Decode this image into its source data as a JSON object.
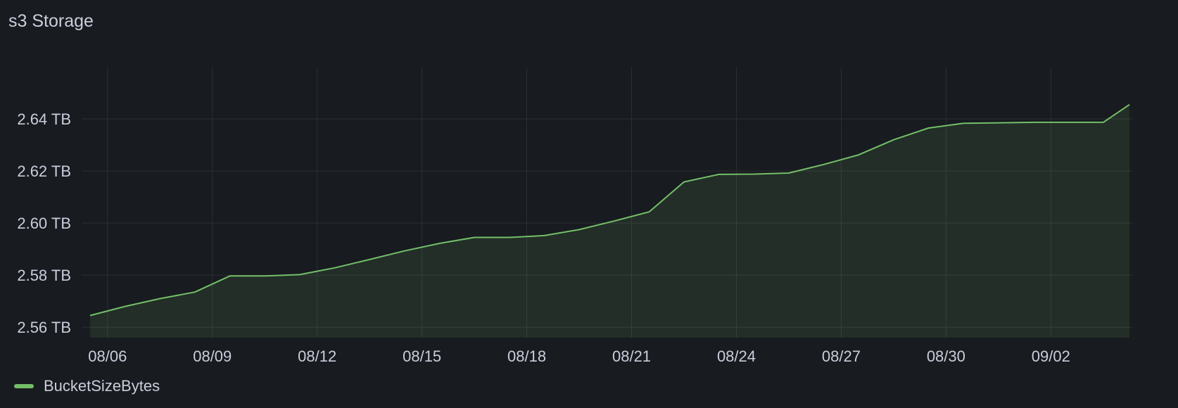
{
  "panel": {
    "title": "s3 Storage"
  },
  "colors": {
    "background": "#181b1f",
    "grid": "#2c2f35",
    "series": "#73bf69",
    "text": "#ccccdc"
  },
  "chart_data": {
    "type": "area",
    "title": "s3 Storage",
    "xlabel": "",
    "ylabel": "",
    "x_ticks": [
      "08/06",
      "08/09",
      "08/12",
      "08/15",
      "08/18",
      "08/21",
      "08/24",
      "08/27",
      "08/30",
      "09/02"
    ],
    "y_ticks": [
      "2.56 TB",
      "2.58 TB",
      "2.60 TB",
      "2.62 TB",
      "2.64 TB"
    ],
    "y_tick_values": [
      2.56,
      2.58,
      2.6,
      2.62,
      2.64
    ],
    "y_unit": "TB",
    "ylim": [
      2.556,
      2.66
    ],
    "x_range": [
      "2024-08-05T12:00",
      "2024-09-04T06:00"
    ],
    "grid": true,
    "legend_position": "bottom-left",
    "series": [
      {
        "name": "BucketSizeBytes",
        "color": "#73bf69",
        "x": [
          "2024-08-05T12:00",
          "2024-08-06T12:00",
          "2024-08-07T12:00",
          "2024-08-08T12:00",
          "2024-08-09T12:00",
          "2024-08-10T12:00",
          "2024-08-11T12:00",
          "2024-08-12T12:00",
          "2024-08-13T12:00",
          "2024-08-14T12:00",
          "2024-08-15T12:00",
          "2024-08-16T12:00",
          "2024-08-17T12:00",
          "2024-08-18T12:00",
          "2024-08-19T12:00",
          "2024-08-20T12:00",
          "2024-08-21T12:00",
          "2024-08-22T12:00",
          "2024-08-23T12:00",
          "2024-08-24T12:00",
          "2024-08-25T12:00",
          "2024-08-26T12:00",
          "2024-08-27T12:00",
          "2024-08-28T12:00",
          "2024-08-29T12:00",
          "2024-08-30T12:00",
          "2024-08-31T12:00",
          "2024-09-01T12:00",
          "2024-09-02T12:00",
          "2024-09-03T12:00",
          "2024-09-04T06:00"
        ],
        "values": [
          2.5645,
          2.568,
          2.571,
          2.5735,
          2.5797,
          2.5797,
          2.5802,
          2.5828,
          2.586,
          2.5893,
          2.5922,
          2.5945,
          2.5945,
          2.5952,
          2.5975,
          2.6008,
          2.6043,
          2.6158,
          2.6187,
          2.6188,
          2.6192,
          2.6225,
          2.6262,
          2.632,
          2.6365,
          2.6383,
          2.6385,
          2.6387,
          2.6387,
          2.6387,
          2.6455
        ]
      }
    ]
  }
}
